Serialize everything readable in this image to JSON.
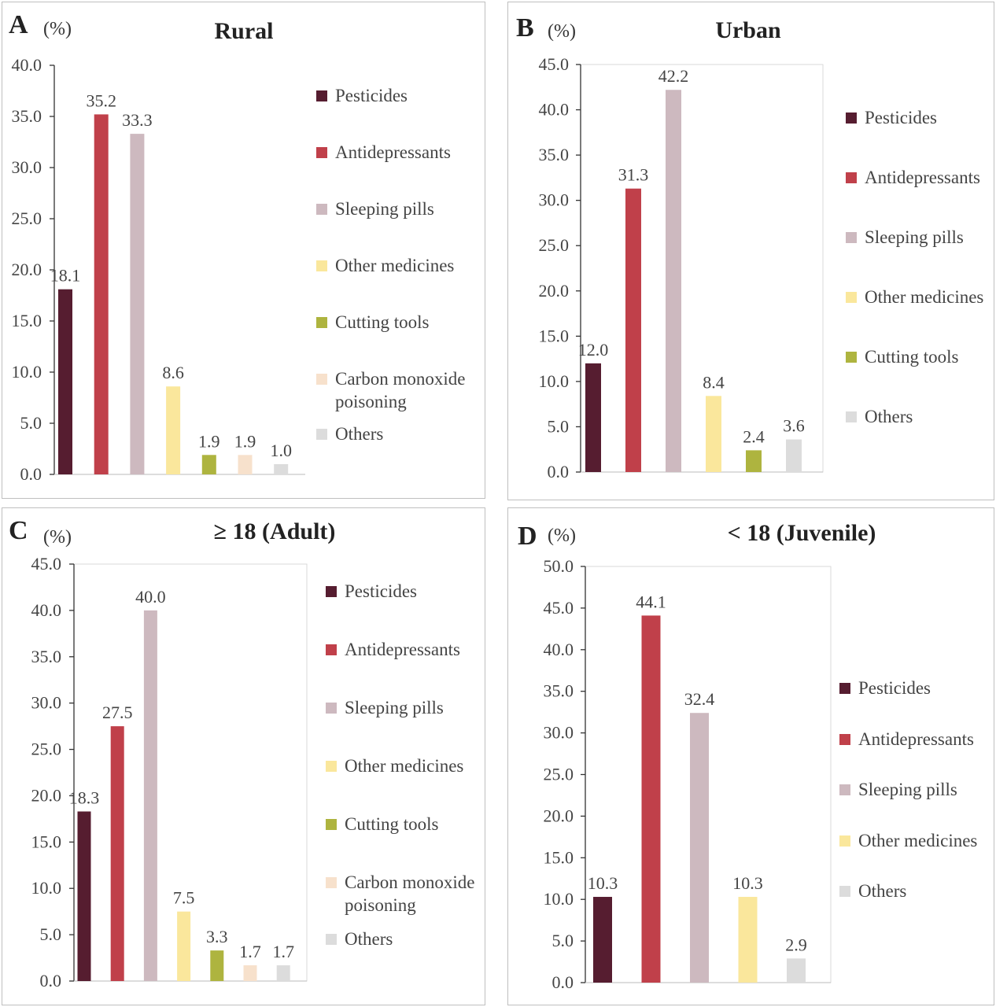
{
  "panels": [
    {
      "letter": "A",
      "unit": "(%)",
      "title": "Rural",
      "legend": [
        "Pesticides",
        "Antidepressants",
        "Sleeping pills",
        "Other medicines",
        "Cutting tools",
        "Carbon monoxide poisoning",
        "Others"
      ]
    },
    {
      "letter": "B",
      "unit": "(%)",
      "title": "Urban",
      "legend": [
        "Pesticides",
        "Antidepressants",
        "Sleeping pills",
        "Other medicines",
        "Cutting tools",
        "Others"
      ]
    },
    {
      "letter": "C",
      "unit": "(%)",
      "title": "≥ 18 (Adult)",
      "legend": [
        "Pesticides",
        "Antidepressants",
        "Sleeping pills",
        "Other medicines",
        "Cutting tools",
        "Carbon monoxide poisoning",
        "Others"
      ]
    },
    {
      "letter": "D",
      "unit": "(%)",
      "title": "< 18 (Juvenile)",
      "legend": [
        "Pesticides",
        "Antidepressants",
        "Sleeping pills",
        "Other medicines",
        "Others"
      ]
    }
  ],
  "colors": {
    "Pesticides": "#561d30",
    "Antidepressants": "#c0404a",
    "Sleeping pills": "#cdb9bf",
    "Other medicines": "#fae79c",
    "Cutting tools": "#aeb43f",
    "Carbon monoxide poisoning": "#f7e1cc",
    "Others": "#dcdcdc"
  },
  "chart_data": [
    {
      "type": "bar",
      "title": "Rural",
      "ylabel": "(%)",
      "categories": [
        "Pesticides",
        "Antidepressants",
        "Sleeping pills",
        "Other medicines",
        "Cutting tools",
        "Carbon monoxide poisoning",
        "Others"
      ],
      "values": [
        18.1,
        35.2,
        33.3,
        8.6,
        1.9,
        1.9,
        1.0
      ],
      "ylim": [
        0,
        40
      ],
      "yticks": [
        "0.0",
        "5.0",
        "10.0",
        "15.0",
        "20.0",
        "25.0",
        "30.0",
        "35.0",
        "40.0"
      ],
      "legend_position": "right",
      "grid": false
    },
    {
      "type": "bar",
      "title": "Urban",
      "ylabel": "(%)",
      "categories": [
        "Pesticides",
        "Antidepressants",
        "Sleeping pills",
        "Other medicines",
        "Cutting tools",
        "Others"
      ],
      "values": [
        12.0,
        31.3,
        42.2,
        8.4,
        2.4,
        3.6
      ],
      "ylim": [
        0,
        45
      ],
      "yticks": [
        "0.0",
        "5.0",
        "10.0",
        "15.0",
        "20.0",
        "25.0",
        "30.0",
        "35.0",
        "40.0",
        "45.0"
      ],
      "legend_position": "right",
      "grid": false
    },
    {
      "type": "bar",
      "title": "≥ 18 (Adult)",
      "ylabel": "(%)",
      "categories": [
        "Pesticides",
        "Antidepressants",
        "Sleeping pills",
        "Other medicines",
        "Cutting tools",
        "Carbon monoxide poisoning",
        "Others"
      ],
      "values": [
        18.3,
        27.5,
        40.0,
        7.5,
        3.3,
        1.7,
        1.7
      ],
      "ylim": [
        0,
        45
      ],
      "yticks": [
        "0.0",
        "5.0",
        "10.0",
        "15.0",
        "20.0",
        "25.0",
        "30.0",
        "35.0",
        "40.0",
        "45.0"
      ],
      "legend_position": "right",
      "grid": false
    },
    {
      "type": "bar",
      "title": "< 18 (Juvenile)",
      "ylabel": "(%)",
      "categories": [
        "Pesticides",
        "Antidepressants",
        "Sleeping pills",
        "Other medicines",
        "Others"
      ],
      "values": [
        10.3,
        44.1,
        32.4,
        10.3,
        2.9
      ],
      "ylim": [
        0,
        50
      ],
      "yticks": [
        "0.0",
        "5.0",
        "10.0",
        "15.0",
        "20.0",
        "25.0",
        "30.0",
        "35.0",
        "40.0",
        "45.0",
        "50.0"
      ],
      "legend_position": "right",
      "grid": false
    }
  ]
}
